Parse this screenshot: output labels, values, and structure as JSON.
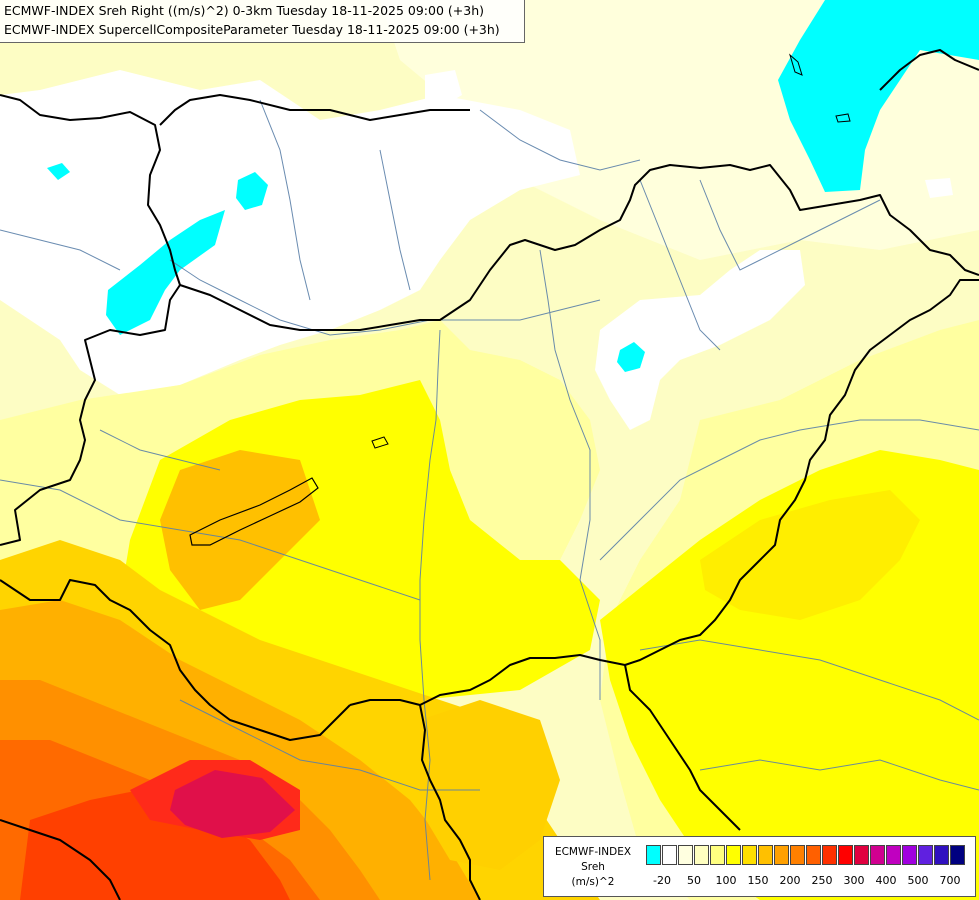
{
  "header": {
    "line1": "ECMWF-INDEX Sreh Right ((m/s)^2) 0-3km Tuesday 18-11-2025 09:00 (+3h)",
    "line2": "ECMWF-INDEX SupercellCompositeParameter Tuesday 18-11-2025 09:00 (+3h)"
  },
  "legend": {
    "model": "ECMWF-INDEX",
    "variable": "Sreh",
    "unit": "(m/s)^2",
    "ticks": [
      "-20",
      "50",
      "100",
      "150",
      "200",
      "250",
      "300",
      "400",
      "500",
      "700"
    ],
    "swatch_colors": [
      "#00ffff",
      "#ffffff",
      "#ffffe0",
      "#ffffc0",
      "#ffff80",
      "#ffff00",
      "#ffe000",
      "#ffc000",
      "#ffa000",
      "#ff8000",
      "#ff6000",
      "#ff3000",
      "#ff0000",
      "#e00040",
      "#d00090",
      "#c000c0",
      "#a000e0",
      "#6020e0",
      "#3010c0",
      "#000080"
    ]
  },
  "colors": {
    "sea_background": "#fdfdc4",
    "border_line": "#000000",
    "river_line": "#5a7fa8"
  }
}
